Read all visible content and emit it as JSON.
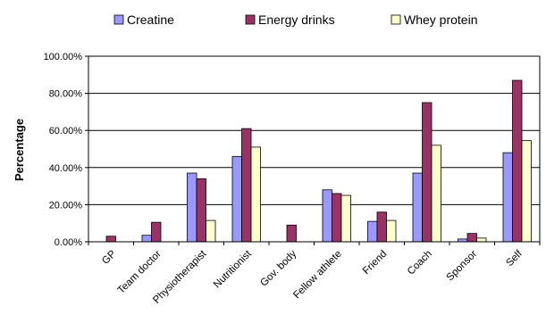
{
  "chart_data": {
    "type": "bar",
    "categories": [
      "GP",
      "Team doctor",
      "Physiotherapist",
      "Nutritionist",
      "Gov. body",
      "Fellow athlete",
      "Friend",
      "Coach",
      "Sponsor",
      "Self"
    ],
    "series": [
      {
        "name": "Creatine",
        "color": "#9999ff",
        "values": [
          0,
          3.5,
          37,
          46,
          0,
          28,
          11,
          37,
          1.5,
          48
        ]
      },
      {
        "name": "Energy drinks",
        "color": "#993366",
        "values": [
          3,
          10.5,
          34,
          61,
          9,
          26,
          16,
          75,
          4.5,
          87
        ]
      },
      {
        "name": "Whey protein",
        "color": "#ffffcc",
        "values": [
          0,
          0,
          11.5,
          51,
          0,
          25,
          11.5,
          52,
          2,
          54.5
        ]
      }
    ],
    "ylabel": "Percentage",
    "ylim": [
      0,
      100
    ],
    "yticks": [
      "0.00%",
      "20.00%",
      "40.00%",
      "60.00%",
      "80.00%",
      "100.00%"
    ],
    "grid": true,
    "legend": "top"
  }
}
